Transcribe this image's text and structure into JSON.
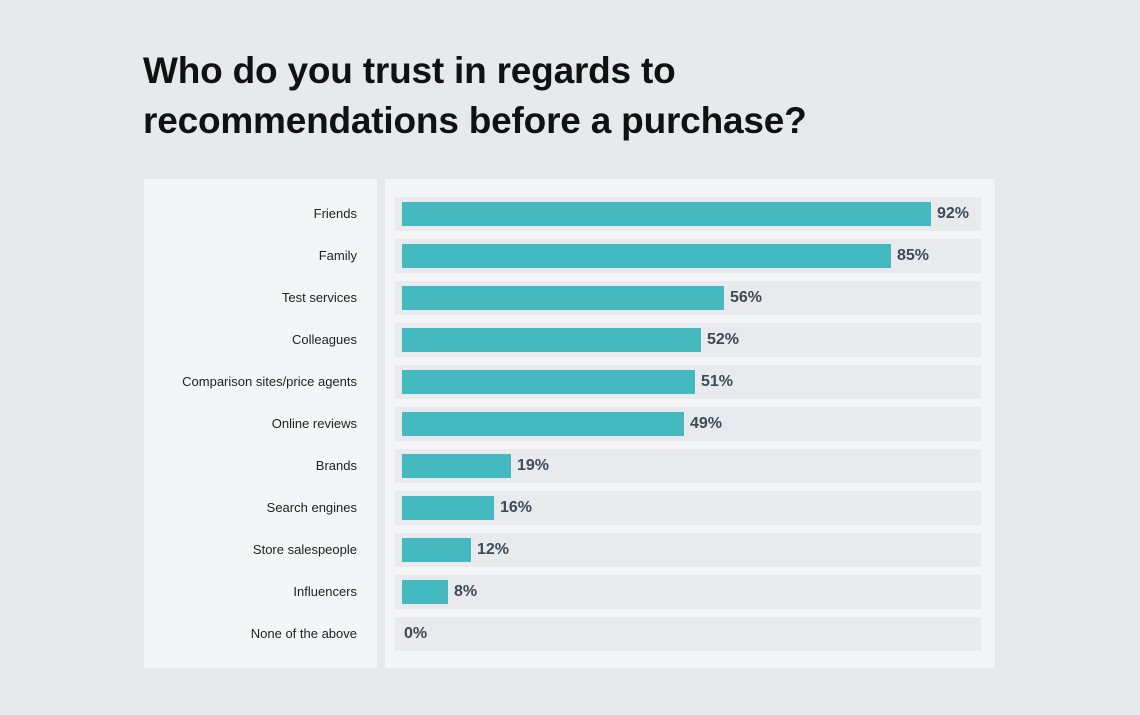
{
  "title": "Who do you trust in regards to recommendations before a purchase?",
  "colors": {
    "bar": "#45b9c0",
    "value_text": "#3d4a57",
    "track": "#e9eaed",
    "panel": "#f4f5f7",
    "background": "#e8e9ed"
  },
  "chart_data": {
    "type": "bar",
    "orientation": "horizontal",
    "title": "Who do you trust in regards to recommendations before a purchase?",
    "xlabel": "",
    "ylabel": "",
    "xlim": [
      0,
      100
    ],
    "grid": false,
    "categories": [
      "Friends",
      "Family",
      "Test services",
      "Colleagues",
      "Comparison sites/price agents",
      "Online reviews",
      "Brands",
      "Search engines",
      "Store salespeople",
      "Influencers",
      "None of the above"
    ],
    "values": [
      92,
      85,
      56,
      52,
      51,
      49,
      19,
      16,
      12,
      8,
      0
    ],
    "value_labels": [
      "92%",
      "85%",
      "56%",
      "52%",
      "51%",
      "49%",
      "19%",
      "16%",
      "12%",
      "8%",
      "0%"
    ]
  }
}
